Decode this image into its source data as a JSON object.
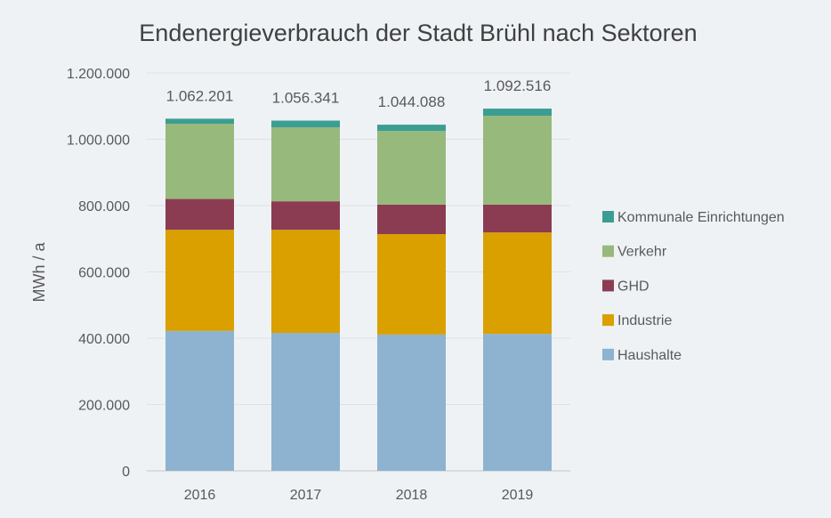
{
  "chart_data": {
    "type": "bar",
    "stacked": true,
    "title": "Endenergieverbrauch der Stadt Brühl nach Sektoren",
    "xlabel": "",
    "ylabel": "MWh / a",
    "ylim": [
      0,
      1200000
    ],
    "yticks": [
      0,
      200000,
      400000,
      600000,
      800000,
      1000000,
      1200000
    ],
    "ytick_labels": [
      "0",
      "200.000",
      "400.000",
      "600.000",
      "800.000",
      "1.000.000",
      "1.200.000"
    ],
    "grid": true,
    "legend_position": "right",
    "categories": [
      "2016",
      "2017",
      "2018",
      "2019"
    ],
    "totals": [
      1062201,
      1056341,
      1044088,
      1092516
    ],
    "total_labels": [
      "1.062.201",
      "1.056.341",
      "1.044.088",
      "1.092.516"
    ],
    "series": [
      {
        "name": "Haushalte",
        "color": "#8db3d0",
        "values": [
          422000,
          416000,
          411000,
          413000
        ]
      },
      {
        "name": "Industrie",
        "color": "#d9a000",
        "values": [
          305000,
          311000,
          303000,
          306000
        ]
      },
      {
        "name": "GHD",
        "color": "#8b3c53",
        "values": [
          93000,
          86000,
          89000,
          84000
        ]
      },
      {
        "name": "Verkehr",
        "color": "#97b97c",
        "values": [
          227000,
          223000,
          222000,
          268000
        ]
      },
      {
        "name": "Kommunale Einrichtungen",
        "color": "#3c9e92",
        "values": [
          15201,
          20341,
          19088,
          21516
        ]
      }
    ]
  }
}
